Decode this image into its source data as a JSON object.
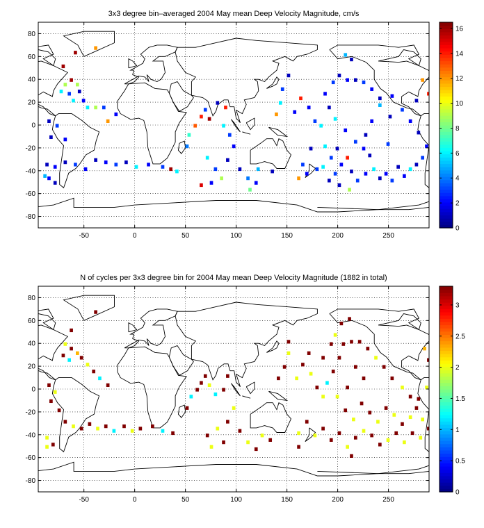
{
  "chart_data": [
    {
      "type": "heatmap",
      "title": "3x3 degree bin–averaged 2004 May mean Deep Velocity Magnitude, cm/s",
      "xlabel": "",
      "ylabel": "",
      "xlim": [
        -95,
        290
      ],
      "ylim": [
        -90,
        90
      ],
      "x_ticks": [
        "-50",
        "0",
        "50",
        "100",
        "150",
        "200",
        "250"
      ],
      "y_ticks": [
        "80",
        "60",
        "40",
        "20",
        "0",
        "-20",
        "-40",
        "-60",
        "-80"
      ],
      "colorbar": {
        "min": 0,
        "max": 16.5,
        "ticks": [
          "16",
          "14",
          "12",
          "10",
          "8",
          "6",
          "4",
          "2",
          "0"
        ]
      },
      "grid": true,
      "cells_lonlat_value": [
        [
          -60,
          62,
          16
        ],
        [
          -72,
          50,
          16
        ],
        [
          -40,
          66,
          12
        ],
        [
          -64,
          38,
          16
        ],
        [
          -70,
          34,
          9
        ],
        [
          -58,
          34,
          9
        ],
        [
          -74,
          28,
          6
        ],
        [
          -66,
          26,
          3
        ],
        [
          -56,
          28,
          1
        ],
        [
          -62,
          20,
          6
        ],
        [
          -52,
          20,
          2
        ],
        [
          -48,
          14,
          6
        ],
        [
          -40,
          14,
          9
        ],
        [
          -32,
          14,
          3
        ],
        [
          -20,
          8,
          2
        ],
        [
          -28,
          2,
          12
        ],
        [
          -86,
          2,
          1
        ],
        [
          -78,
          -2,
          3
        ],
        [
          -84,
          -12,
          1
        ],
        [
          -70,
          -14,
          2
        ],
        [
          -88,
          -36,
          1
        ],
        [
          -80,
          -38,
          2
        ],
        [
          -70,
          -34,
          1
        ],
        [
          -60,
          -36,
          3
        ],
        [
          -50,
          -40,
          2
        ],
        [
          -40,
          -32,
          1
        ],
        [
          -30,
          -34,
          2
        ],
        [
          -20,
          -36,
          3
        ],
        [
          -10,
          -34,
          1
        ],
        [
          0,
          -38,
          6
        ],
        [
          -86,
          -48,
          2
        ],
        [
          -80,
          -52,
          1
        ],
        [
          -90,
          -46,
          5
        ],
        [
          12,
          -36,
          2
        ],
        [
          26,
          -38,
          3
        ],
        [
          34,
          -40,
          16
        ],
        [
          40,
          -42,
          6
        ],
        [
          50,
          -20,
          4
        ],
        [
          52,
          -10,
          7
        ],
        [
          58,
          -2,
          13
        ],
        [
          64,
          6,
          14
        ],
        [
          68,
          12,
          3
        ],
        [
          72,
          4,
          16
        ],
        [
          80,
          18,
          1
        ],
        [
          86,
          -2,
          6
        ],
        [
          88,
          14,
          14
        ],
        [
          92,
          -10,
          3
        ],
        [
          96,
          -20,
          2
        ],
        [
          90,
          -32,
          1
        ],
        [
          70,
          -30,
          6
        ],
        [
          78,
          -40,
          3
        ],
        [
          84,
          -48,
          9
        ],
        [
          74,
          -52,
          2
        ],
        [
          64,
          -54,
          15
        ],
        [
          102,
          -40,
          1
        ],
        [
          110,
          -48,
          4
        ],
        [
          112,
          -58,
          8
        ],
        [
          118,
          -52,
          2
        ],
        [
          120,
          -40,
          5
        ],
        [
          134,
          -42,
          1
        ],
        [
          138,
          8,
          12
        ],
        [
          142,
          18,
          6
        ],
        [
          144,
          30,
          3
        ],
        [
          150,
          42,
          1
        ],
        [
          156,
          10,
          2
        ],
        [
          162,
          22,
          14
        ],
        [
          170,
          14,
          2
        ],
        [
          176,
          2,
          3
        ],
        [
          182,
          -2,
          6
        ],
        [
          172,
          -22,
          1
        ],
        [
          164,
          -36,
          3
        ],
        [
          160,
          -48,
          12
        ],
        [
          168,
          -44,
          2
        ],
        [
          178,
          -40,
          3
        ],
        [
          184,
          -38,
          6
        ],
        [
          190,
          -50,
          1
        ],
        [
          196,
          -44,
          3
        ],
        [
          202,
          -36,
          2
        ],
        [
          208,
          -30,
          14
        ],
        [
          212,
          -42,
          1
        ],
        [
          218,
          -50,
          3
        ],
        [
          226,
          -44,
          2
        ],
        [
          234,
          -40,
          6
        ],
        [
          240,
          -48,
          1
        ],
        [
          246,
          -44,
          2
        ],
        [
          252,
          -50,
          3
        ],
        [
          258,
          -38,
          1
        ],
        [
          264,
          -46,
          2
        ],
        [
          270,
          -40,
          6
        ],
        [
          276,
          -36,
          1
        ],
        [
          282,
          -30,
          3
        ],
        [
          286,
          -20,
          2
        ],
        [
          278,
          -8,
          1
        ],
        [
          270,
          2,
          2
        ],
        [
          262,
          12,
          3
        ],
        [
          250,
          6,
          1
        ],
        [
          240,
          16,
          5
        ],
        [
          232,
          2,
          2
        ],
        [
          226,
          -10,
          1
        ],
        [
          216,
          -16,
          3
        ],
        [
          206,
          -6,
          2
        ],
        [
          196,
          4,
          6
        ],
        [
          190,
          14,
          1
        ],
        [
          186,
          26,
          2
        ],
        [
          194,
          36,
          3
        ],
        [
          200,
          42,
          1
        ],
        [
          208,
          38,
          2
        ],
        [
          216,
          38,
          1
        ],
        [
          224,
          36,
          3
        ],
        [
          232,
          30,
          2
        ],
        [
          240,
          22,
          1
        ],
        [
          212,
          56,
          1
        ],
        [
          206,
          60,
          5
        ],
        [
          282,
          38,
          12
        ],
        [
          288,
          26,
          14
        ],
        [
          276,
          20,
          1
        ],
        [
          252,
          24,
          2
        ],
        [
          248,
          -18,
          3
        ],
        [
          230,
          -28,
          1
        ],
        [
          224,
          -22,
          2
        ],
        [
          198,
          -22,
          1
        ],
        [
          192,
          -30,
          3
        ],
        [
          186,
          -20,
          6
        ],
        [
          200,
          -54,
          1
        ],
        [
          210,
          -58,
          9
        ]
      ]
    },
    {
      "type": "heatmap",
      "title": "N of cycles per 3x3 degree bin for 2004 May mean Deep Velocity Magnitude (1882 in total)",
      "xlabel": "",
      "ylabel": "",
      "xlim": [
        -95,
        290
      ],
      "ylim": [
        -90,
        90
      ],
      "x_ticks": [
        "-50",
        "0",
        "50",
        "100",
        "150",
        "200",
        "250"
      ],
      "y_ticks": [
        "80",
        "60",
        "40",
        "20",
        "0",
        "-20",
        "-40",
        "-60",
        "-80"
      ],
      "colorbar": {
        "min": 0,
        "max": 3.3,
        "ticks": [
          "3",
          "2.5",
          "2",
          "1.5",
          "1",
          "0.5",
          "0"
        ]
      },
      "grid": true,
      "cells_lonlat_value": [
        [
          -70,
          38,
          2
        ],
        [
          -64,
          34,
          3.3
        ],
        [
          -58,
          30,
          2.3
        ],
        [
          -72,
          28,
          3.3
        ],
        [
          -66,
          24,
          1.2
        ],
        [
          -54,
          26,
          3.3
        ],
        [
          -48,
          20,
          2
        ],
        [
          -42,
          14,
          3.3
        ],
        [
          -36,
          8,
          1.2
        ],
        [
          -28,
          2,
          3.3
        ],
        [
          -86,
          2,
          3.3
        ],
        [
          -80,
          -4,
          2
        ],
        [
          -84,
          -12,
          3.3
        ],
        [
          -76,
          -20,
          3.3
        ],
        [
          -70,
          -30,
          3.3
        ],
        [
          -62,
          -34,
          2
        ],
        [
          -54,
          -36,
          3.3
        ],
        [
          -46,
          -32,
          3.3
        ],
        [
          -38,
          -36,
          2
        ],
        [
          -30,
          -34,
          3.3
        ],
        [
          -22,
          -38,
          1.2
        ],
        [
          -12,
          -34,
          3.3
        ],
        [
          -4,
          -38,
          2
        ],
        [
          4,
          -36,
          3.3
        ],
        [
          -88,
          -44,
          2
        ],
        [
          -82,
          -50,
          3.3
        ],
        [
          -88,
          -52,
          2
        ],
        [
          16,
          -34,
          3.3
        ],
        [
          26,
          -38,
          1.2
        ],
        [
          36,
          -40,
          3.3
        ],
        [
          50,
          -18,
          3.3
        ],
        [
          54,
          -8,
          1.2
        ],
        [
          60,
          -2,
          3.3
        ],
        [
          64,
          4,
          3.3
        ],
        [
          68,
          10,
          3.3
        ],
        [
          72,
          2,
          2
        ],
        [
          78,
          -6,
          1.2
        ],
        [
          86,
          -2,
          3.3
        ],
        [
          90,
          10,
          3.3
        ],
        [
          96,
          -18,
          2
        ],
        [
          90,
          -30,
          3.3
        ],
        [
          80,
          -36,
          2
        ],
        [
          70,
          -42,
          3.3
        ],
        [
          74,
          -52,
          2
        ],
        [
          86,
          -48,
          3.3
        ],
        [
          102,
          -38,
          3.3
        ],
        [
          110,
          -48,
          2
        ],
        [
          118,
          -54,
          3.3
        ],
        [
          124,
          -42,
          2
        ],
        [
          132,
          -46,
          3.3
        ],
        [
          140,
          8,
          3.3
        ],
        [
          146,
          18,
          3.3
        ],
        [
          150,
          30,
          2
        ],
        [
          150,
          40,
          3.3
        ],
        [
          158,
          8,
          2
        ],
        [
          164,
          20,
          3.3
        ],
        [
          172,
          12,
          2
        ],
        [
          178,
          0,
          3.3
        ],
        [
          184,
          -8,
          2
        ],
        [
          188,
          4,
          1.2
        ],
        [
          194,
          14,
          3.3
        ],
        [
          200,
          26,
          3.3
        ],
        [
          204,
          38,
          3.3
        ],
        [
          212,
          40,
          3.3
        ],
        [
          220,
          40,
          3.3
        ],
        [
          228,
          34,
          3.3
        ],
        [
          236,
          26,
          2
        ],
        [
          244,
          18,
          3.3
        ],
        [
          252,
          8,
          3.3
        ],
        [
          262,
          0,
          2
        ],
        [
          270,
          -8,
          3.3
        ],
        [
          276,
          -18,
          3.3
        ],
        [
          282,
          -28,
          2
        ],
        [
          288,
          -36,
          3.3
        ],
        [
          280,
          -44,
          2
        ],
        [
          272,
          -40,
          3.3
        ],
        [
          264,
          -48,
          2
        ],
        [
          256,
          -40,
          3.3
        ],
        [
          248,
          -46,
          2
        ],
        [
          240,
          -50,
          3.3
        ],
        [
          232,
          -42,
          3.3
        ],
        [
          224,
          -38,
          2
        ],
        [
          216,
          -44,
          3.3
        ],
        [
          208,
          -52,
          2
        ],
        [
          200,
          -40,
          3.3
        ],
        [
          192,
          -46,
          3.3
        ],
        [
          184,
          -36,
          3.3
        ],
        [
          176,
          -42,
          2
        ],
        [
          168,
          -30,
          3.3
        ],
        [
          160,
          -40,
          2
        ],
        [
          160,
          -52,
          3.3
        ],
        [
          206,
          -20,
          3.3
        ],
        [
          214,
          -28,
          2
        ],
        [
          222,
          -14,
          3.3
        ],
        [
          230,
          -22,
          3.3
        ],
        [
          238,
          -30,
          2
        ],
        [
          246,
          -18,
          3.3
        ],
        [
          254,
          -24,
          2
        ],
        [
          262,
          -32,
          3.3
        ],
        [
          270,
          -26,
          2
        ],
        [
          278,
          -10,
          3.3
        ],
        [
          286,
          0,
          2
        ],
        [
          284,
          34,
          2.3
        ],
        [
          288,
          24,
          3.3
        ],
        [
          210,
          60,
          3.3
        ],
        [
          202,
          56,
          3.3
        ],
        [
          196,
          46,
          2
        ],
        [
          -64,
          50,
          3.3
        ],
        [
          -40,
          66,
          3.3
        ],
        [
          170,
          30,
          3.3
        ],
        [
          184,
          26,
          3.3
        ],
        [
          192,
          38,
          3.3
        ],
        [
          216,
          18,
          3.3
        ],
        [
          224,
          8,
          3.3
        ],
        [
          198,
          -8,
          2
        ],
        [
          208,
          0,
          3.3
        ],
        [
          212,
          -60,
          3.3
        ]
      ]
    }
  ]
}
